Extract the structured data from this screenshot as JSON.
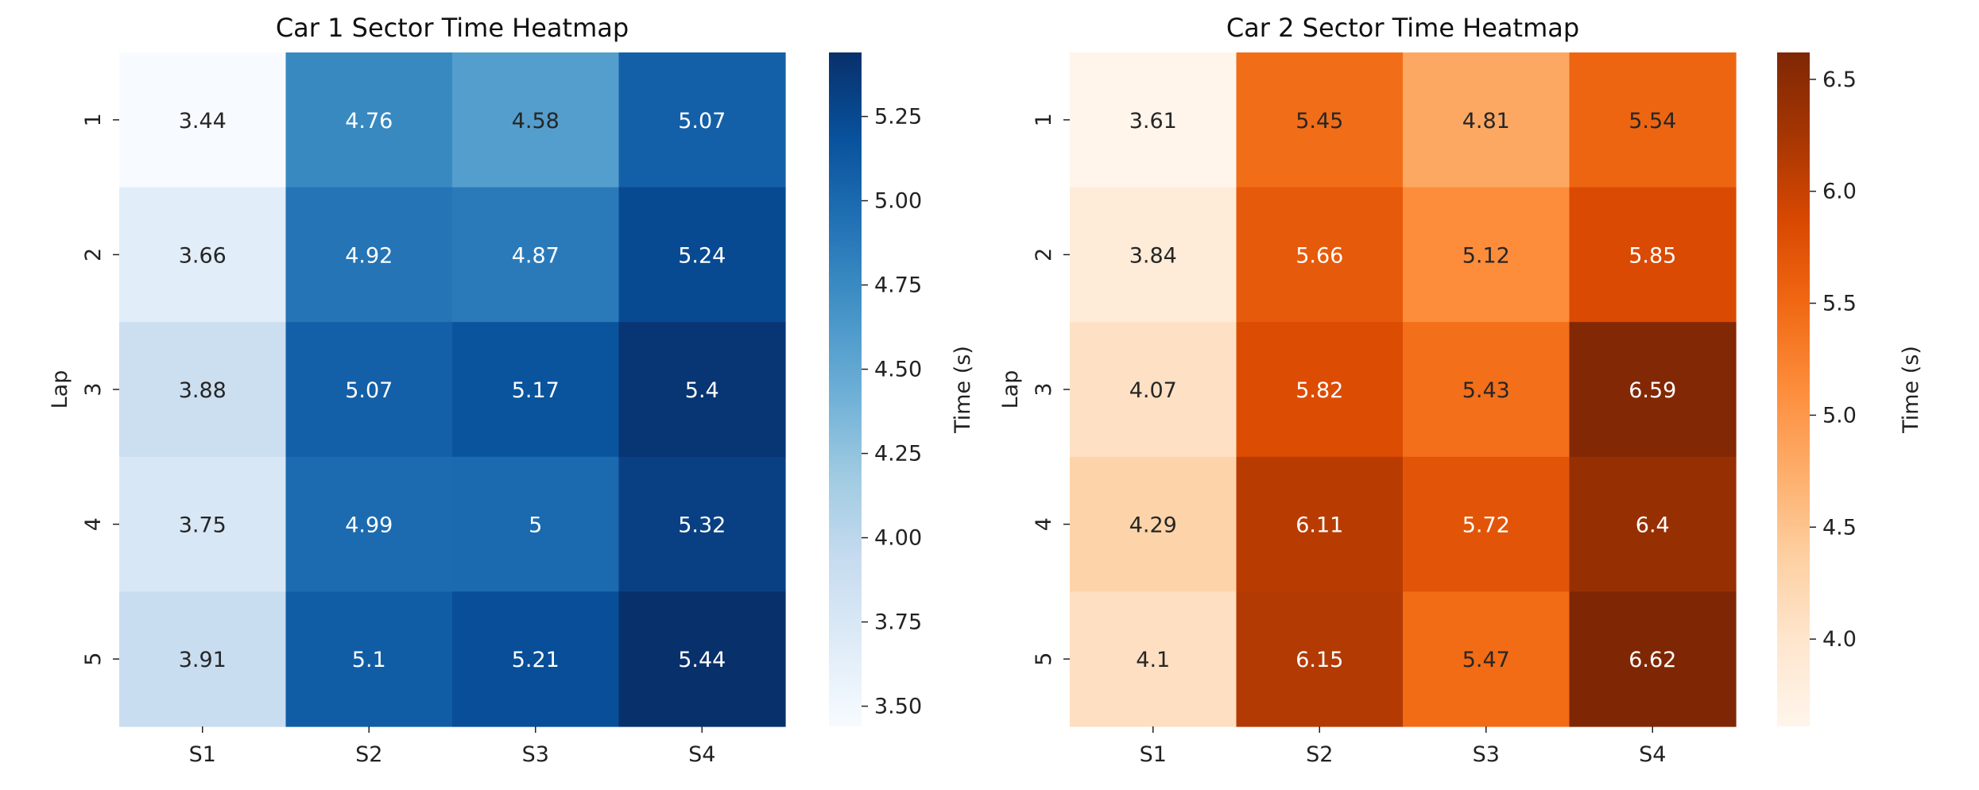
{
  "chart_data": [
    {
      "type": "heatmap",
      "title": "Car 1 Sector Time Heatmap",
      "xlabel": "",
      "ylabel": "Lap",
      "x_categories": [
        "S1",
        "S2",
        "S3",
        "S4"
      ],
      "y_categories": [
        "1",
        "2",
        "3",
        "4",
        "5"
      ],
      "values": [
        [
          3.44,
          4.76,
          4.58,
          5.07
        ],
        [
          3.66,
          4.92,
          4.87,
          5.24
        ],
        [
          3.88,
          5.07,
          5.17,
          5.4
        ],
        [
          3.75,
          4.99,
          5.0,
          5.32
        ],
        [
          3.91,
          5.1,
          5.21,
          5.44
        ]
      ],
      "annotation_format": "2 decimals",
      "colormap": "Blues",
      "colors": [
        "#f7fbff",
        "#deebf7",
        "#c6dbef",
        "#9ecae1",
        "#6baed6",
        "#4292c6",
        "#2171b5",
        "#08519c",
        "#08306b"
      ],
      "colorbar": {
        "label": "Time (s)",
        "range": [
          3.44,
          5.44
        ],
        "ticks": [
          3.5,
          3.75,
          4.0,
          4.25,
          4.5,
          4.75,
          5.0,
          5.25
        ],
        "tick_labels": [
          "3.50",
          "3.75",
          "4.00",
          "4.25",
          "4.50",
          "4.75",
          "5.00",
          "5.25"
        ]
      }
    },
    {
      "type": "heatmap",
      "title": "Car 2 Sector Time Heatmap",
      "xlabel": "",
      "ylabel": "Lap",
      "x_categories": [
        "S1",
        "S2",
        "S3",
        "S4"
      ],
      "y_categories": [
        "1",
        "2",
        "3",
        "4",
        "5"
      ],
      "values": [
        [
          3.61,
          5.45,
          4.81,
          5.54
        ],
        [
          3.84,
          5.66,
          5.12,
          5.85
        ],
        [
          4.07,
          5.82,
          5.43,
          6.59
        ],
        [
          4.29,
          6.11,
          5.72,
          6.4
        ],
        [
          4.1,
          6.15,
          5.47,
          6.62
        ]
      ],
      "annotation_format": "2 decimals",
      "colormap": "Oranges",
      "colors": [
        "#fff5eb",
        "#fee6ce",
        "#fdd0a2",
        "#fdae6b",
        "#fd8d3c",
        "#f16913",
        "#d94801",
        "#a63603",
        "#7f2704"
      ],
      "colorbar": {
        "label": "Time (s)",
        "range": [
          3.61,
          6.62
        ],
        "ticks": [
          4.0,
          4.5,
          5.0,
          5.5,
          6.0,
          6.5
        ],
        "tick_labels": [
          "4.0",
          "4.5",
          "5.0",
          "5.5",
          "6.0",
          "6.5"
        ]
      }
    }
  ]
}
